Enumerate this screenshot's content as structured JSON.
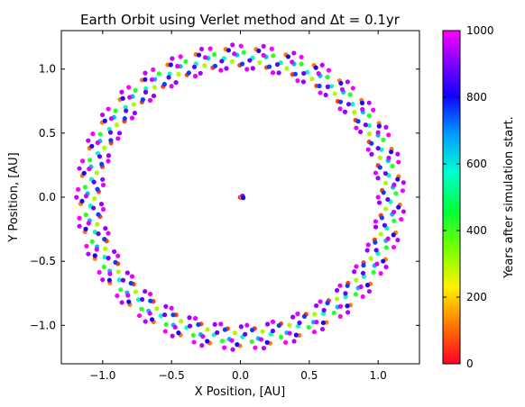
{
  "chart_data": {
    "type": "scatter",
    "title": "Earth Orbit using Verlet method and Δt = 0.1yr",
    "xlabel": "X Position, [AU]",
    "ylabel": "Y Position, [AU]",
    "xlim": [
      -1.3,
      1.3
    ],
    "ylim": [
      -1.3,
      1.3
    ],
    "xticks": [
      -1.0,
      -0.5,
      0.0,
      0.5,
      1.0
    ],
    "xtick_labels": [
      "−1.0",
      "−0.5",
      "0.0",
      "0.5",
      "1.0"
    ],
    "yticks": [
      -1.0,
      -0.5,
      0.0,
      0.5,
      1.0
    ],
    "ytick_labels": [
      "−1.0",
      "−0.5",
      "0.0",
      "0.5",
      "1.0"
    ],
    "grid": false,
    "legend": "none",
    "marker": "circle",
    "color_by": "years",
    "series": [
      {
        "points_per_ring": 33,
        "rings": [
          {
            "radius": 1.0,
            "phase_deg": 0,
            "years": 980
          },
          {
            "radius": 1.19,
            "phase_deg": 5.5,
            "years": 950
          },
          {
            "radius": 1.03,
            "phase_deg": 3,
            "years": 60
          },
          {
            "radius": 1.16,
            "phase_deg": 8,
            "years": 120
          },
          {
            "radius": 1.06,
            "phase_deg": 6,
            "years": 300
          },
          {
            "radius": 1.13,
            "phase_deg": 1.5,
            "years": 420
          },
          {
            "radius": 1.09,
            "phase_deg": 9,
            "years": 560
          },
          {
            "radius": 1.11,
            "phase_deg": 4,
            "years": 650
          },
          {
            "radius": 1.04,
            "phase_deg": 2,
            "years": 760
          },
          {
            "radius": 1.15,
            "phase_deg": 7,
            "years": 820
          },
          {
            "radius": 1.07,
            "phase_deg": 10,
            "years": 880
          },
          {
            "radius": 1.18,
            "phase_deg": 2.5,
            "years": 1000
          },
          {
            "radius": 1.01,
            "phase_deg": 8.5,
            "years": 920
          },
          {
            "radius": 1.12,
            "phase_deg": 5,
            "years": 970
          }
        ]
      }
    ],
    "center_points": [
      {
        "x": 0.0,
        "y": 0.0,
        "years": 0
      },
      {
        "x": 0.01,
        "y": 0.005,
        "years": 230
      },
      {
        "x": 0.02,
        "y": 0.0,
        "years": 1000
      },
      {
        "x": 0.015,
        "y": 0.01,
        "years": 900
      },
      {
        "x": 0.02,
        "y": -0.005,
        "years": 800
      }
    ],
    "colorbar": {
      "label": "Years after simulation start.",
      "range": [
        0,
        1000
      ],
      "ticks": [
        0,
        200,
        400,
        600,
        800,
        1000
      ],
      "tick_labels": [
        "0",
        "200",
        "400",
        "600",
        "800",
        "1000"
      ],
      "colormap": "gist_rainbow",
      "stops": [
        {
          "pos": 0.0,
          "color": "#ff0029"
        },
        {
          "pos": 0.115,
          "color": "#ff7700"
        },
        {
          "pos": 0.23,
          "color": "#fff200"
        },
        {
          "pos": 0.345,
          "color": "#7aff00"
        },
        {
          "pos": 0.46,
          "color": "#00ff3a"
        },
        {
          "pos": 0.575,
          "color": "#00ffd0"
        },
        {
          "pos": 0.69,
          "color": "#009cff"
        },
        {
          "pos": 0.805,
          "color": "#1000ff"
        },
        {
          "pos": 0.92,
          "color": "#9700ff"
        },
        {
          "pos": 1.0,
          "color": "#ff00ff"
        }
      ]
    }
  }
}
